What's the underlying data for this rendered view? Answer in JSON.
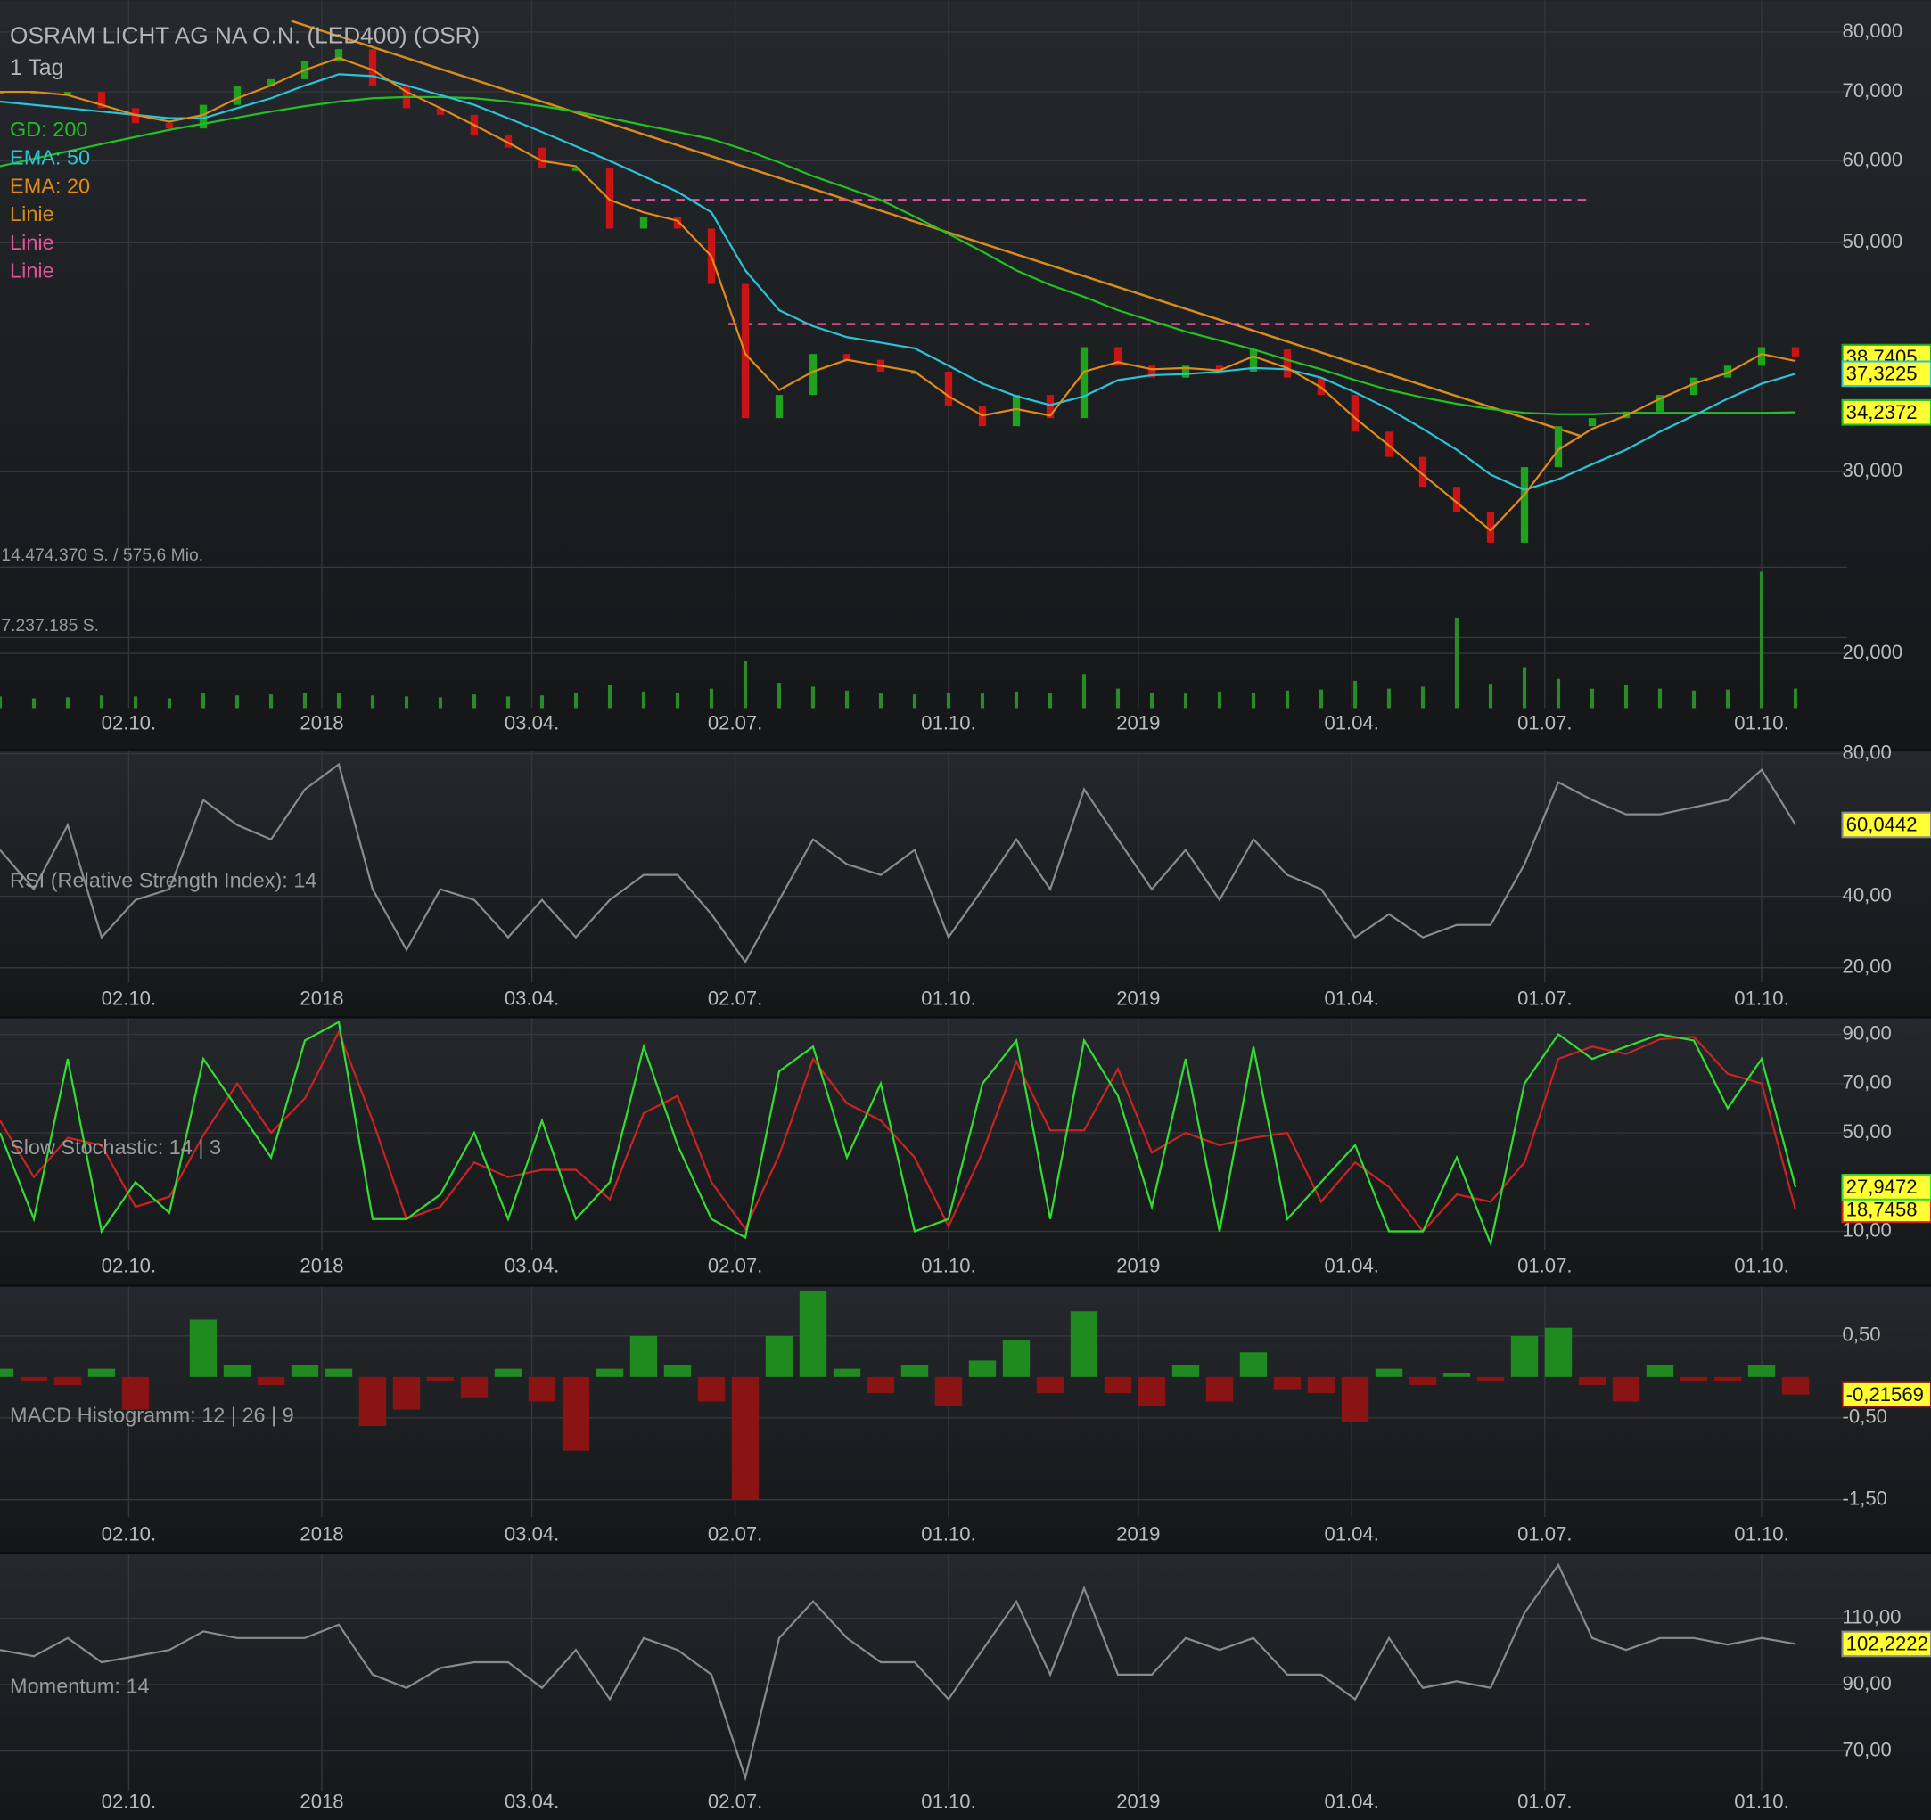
{
  "chart_data": [
    {
      "type": "line",
      "title": "OSRAM LICHT AG NA O.N. (LED400) (OSR)",
      "subtitle": "1 Tag",
      "log": true,
      "xlim": [
        0,
        57
      ],
      "xticks": [
        {
          "value": 3.8,
          "label": "02.10."
        },
        {
          "value": 9.5,
          "label": "2018"
        },
        {
          "value": 15.7,
          "label": "03.04."
        },
        {
          "value": 21.7,
          "label": "02.07."
        },
        {
          "value": 28,
          "label": "01.10."
        },
        {
          "value": 33.6,
          "label": "2019"
        },
        {
          "value": 39.9,
          "label": "01.04."
        },
        {
          "value": 45.6,
          "label": "01.07."
        },
        {
          "value": 52,
          "label": "01.10."
        }
      ],
      "ylim": [
        17.7,
        85.9
      ],
      "yticks": [
        {
          "value": 80,
          "label": "80,000"
        },
        {
          "value": 70,
          "label": "70,000"
        },
        {
          "value": 60,
          "label": "60,000"
        },
        {
          "value": 50,
          "label": "50,000"
        },
        {
          "value": 30,
          "label": "30,000"
        },
        {
          "value": 20,
          "label": "20,000"
        }
      ],
      "grid": true,
      "series": [
        {
          "style": "bars",
          "colors": {
            "up": "#1fa31f",
            "down": "#c81414"
          },
          "last_label": "38,7405",
          "values": [
            70,
            70,
            70,
            67.5,
            65.3,
            64.5,
            68,
            71,
            72,
            75,
            77,
            71,
            67.5,
            66.5,
            63.5,
            61.8,
            59,
            59,
            51.6,
            53,
            51.6,
            45.6,
            33.8,
            35.6,
            39,
            38.5,
            37.5,
            37.5,
            34.7,
            33.2,
            35.6,
            33.8,
            39.6,
            38,
            37,
            38,
            37.5,
            39.4,
            37,
            35.6,
            32.8,
            31,
            29,
            27.4,
            25.6,
            30.3,
            33.2,
            33.8,
            34.3,
            35.6,
            37,
            38,
            39.6,
            38.7405
          ]
        },
        {
          "name": "GD: 200",
          "color": "#22c022",
          "last_label": "34,2372",
          "values": [
            59.3,
            60.3,
            61.3,
            62.3,
            63.3,
            64.3,
            65.2,
            66.1,
            67,
            67.8,
            68.5,
            69,
            69.2,
            69.2,
            69,
            68.5,
            67.8,
            67,
            66,
            65,
            64,
            63,
            61.5,
            59.8,
            58,
            56.5,
            55,
            53,
            51,
            49,
            47,
            45.5,
            44.3,
            43,
            42,
            41,
            40.2,
            39.4,
            38.5,
            37.7,
            36.8,
            36,
            35.4,
            34.9,
            34.5,
            34.2,
            34.1,
            34.1,
            34.2,
            34.2,
            34.2,
            34.2,
            34.2,
            34.2372
          ]
        },
        {
          "name": "EMA: 50",
          "color": "#2bc4d6",
          "last_label": "37,3225",
          "values": [
            68.5,
            68,
            67.5,
            67,
            66.5,
            66,
            66,
            67.5,
            69,
            71,
            72.8,
            72.5,
            71,
            69.5,
            68,
            66,
            64,
            62,
            60,
            58,
            56,
            53.5,
            47,
            43,
            41.5,
            40.5,
            40,
            39.5,
            38,
            36.5,
            35.5,
            34.8,
            35.5,
            36.8,
            37.2,
            37.3,
            37.5,
            37.8,
            37.7,
            37,
            35.8,
            34.5,
            33,
            31.5,
            29.8,
            28.8,
            29.5,
            30.5,
            31.5,
            32.8,
            34,
            35.3,
            36.5,
            37.3225
          ]
        },
        {
          "name": "EMA: 20",
          "color": "#e08a1a",
          "values": [
            70,
            70,
            69.5,
            68,
            66.5,
            65.5,
            66.5,
            69,
            71,
            73.5,
            75.5,
            73.5,
            70,
            67.5,
            65,
            62.5,
            60,
            59.3,
            55,
            53.5,
            52.5,
            48.5,
            39,
            36,
            37.5,
            38.5,
            38,
            37.5,
            35.5,
            34,
            34.5,
            34,
            37.5,
            38.3,
            37.7,
            37.8,
            37.6,
            38.8,
            37.8,
            36.2,
            33.8,
            31.8,
            29.8,
            28,
            26.3,
            28.5,
            31.5,
            33,
            34,
            35.3,
            36.5,
            37.4,
            39,
            38.4
          ]
        }
      ],
      "lines": [
        {
          "name": "Linie",
          "color": "#d98b1c",
          "x": [
            8.6,
            46.7
          ],
          "values": [
            82,
            32.45
          ]
        },
        {
          "name": "Linie",
          "color": "#e0559a",
          "dash": true,
          "x": [
            18.65,
            46.9
          ],
          "values": [
            55,
            55
          ]
        },
        {
          "name": "Linie",
          "color": "#e0559a",
          "dash": true,
          "x": [
            21.5,
            46.9
          ],
          "values": [
            41.7,
            41.7
          ]
        }
      ],
      "volume": {
        "color": "#2a8a2a",
        "y2lim": [
          0,
          72700000
        ],
        "y2ticks": [
          {
            "value": 14474370,
            "label": "14.474.370 S. / 575,6 Mio."
          },
          {
            "value": 7237185,
            "label": "7.237.185 S."
          }
        ],
        "values": [
          1200000,
          1000000,
          1100000,
          1300000,
          1200000,
          1000000,
          1500000,
          1300000,
          1400000,
          1600000,
          1500000,
          1300000,
          1200000,
          1100000,
          1400000,
          1200000,
          1300000,
          1600000,
          2400000,
          1700000,
          1600000,
          2000000,
          4800000,
          2600000,
          2200000,
          1800000,
          1500000,
          1400000,
          1600000,
          1500000,
          1700000,
          1500000,
          3500000,
          2000000,
          1600000,
          1500000,
          1700000,
          1600000,
          1800000,
          1900000,
          2800000,
          2000000,
          2200000,
          9300000,
          2500000,
          4200000,
          3000000,
          2000000,
          2400000,
          2000000,
          1800000,
          1900000,
          14000000,
          2000000
        ]
      }
    },
    {
      "type": "line",
      "label": "RSI (Relative Strength Index): 14",
      "xlim": [
        0,
        57
      ],
      "xticks": [
        {
          "value": 3.8,
          "label": "02.10."
        },
        {
          "value": 9.5,
          "label": "2018"
        },
        {
          "value": 15.7,
          "label": "03.04."
        },
        {
          "value": 21.7,
          "label": "02.07."
        },
        {
          "value": 28,
          "label": "01.10."
        },
        {
          "value": 33.6,
          "label": "2019"
        },
        {
          "value": 39.9,
          "label": "01.04."
        },
        {
          "value": 45.6,
          "label": "01.07."
        },
        {
          "value": 52,
          "label": "01.10."
        }
      ],
      "ylim": [
        15.8,
        80.7
      ],
      "yticks": [
        {
          "value": 80,
          "label": "80,00"
        },
        {
          "value": 40,
          "label": "40,00"
        },
        {
          "value": 20,
          "label": "20,00"
        }
      ],
      "grid": true,
      "series": [
        {
          "color": "#8a8a8a",
          "last_label": "60,0442",
          "values": [
            53,
            42,
            60,
            28.5,
            39,
            42,
            67,
            60,
            56,
            70,
            77,
            42,
            25,
            42,
            39,
            28.5,
            39,
            28.5,
            39,
            46,
            46,
            35,
            21.6,
            39,
            56,
            49,
            46,
            53,
            28.5,
            42,
            56,
            42,
            70,
            56,
            42,
            53,
            39,
            56,
            46,
            42,
            28.5,
            35,
            28.5,
            32,
            32,
            49,
            72,
            67,
            63,
            63,
            65,
            67,
            75.5,
            60.0442
          ]
        }
      ]
    },
    {
      "type": "line",
      "label": "Slow Stochastic: 14 | 3",
      "xlim": [
        0,
        57
      ],
      "xticks": [
        {
          "value": 3.8,
          "label": "02.10."
        },
        {
          "value": 9.5,
          "label": "2018"
        },
        {
          "value": 15.7,
          "label": "03.04."
        },
        {
          "value": 21.7,
          "label": "02.07."
        },
        {
          "value": 28,
          "label": "01.10."
        },
        {
          "value": 33.6,
          "label": "2019"
        },
        {
          "value": 39.9,
          "label": "01.04."
        },
        {
          "value": 45.6,
          "label": "01.07."
        },
        {
          "value": 52,
          "label": "01.10."
        }
      ],
      "ylim": [
        2.5,
        96.5
      ],
      "yticks": [
        {
          "value": 90,
          "label": "90,00"
        },
        {
          "value": 70,
          "label": "70,00"
        },
        {
          "value": 50,
          "label": "50,00"
        },
        {
          "value": 10,
          "label": "10,00"
        }
      ],
      "grid": true,
      "series": [
        {
          "color": "#cc2222",
          "last_label": "18,7458",
          "values": [
            55,
            32,
            48,
            45,
            20,
            24,
            49,
            70,
            50,
            64,
            91,
            55,
            15,
            20,
            38,
            32,
            35,
            35,
            23,
            58,
            65,
            30,
            11,
            41,
            80,
            62,
            55,
            40,
            12,
            42,
            79,
            51,
            51,
            76,
            42,
            50,
            45,
            48,
            50,
            22,
            38,
            28,
            10,
            25,
            22,
            38,
            80,
            85,
            82,
            88,
            89,
            74,
            70,
            18.7458
          ]
        },
        {
          "color": "#33dd33",
          "last_label": "27,9472",
          "values": [
            50,
            15,
            80,
            10,
            30,
            17.5,
            80,
            60,
            40,
            87.5,
            95,
            15,
            15,
            25,
            50,
            15,
            55,
            15,
            30,
            85,
            45,
            15,
            7.5,
            75,
            85,
            40,
            70,
            10,
            15,
            70,
            87.5,
            15,
            87.5,
            65,
            20,
            80,
            10,
            85,
            15,
            30,
            45,
            10,
            10,
            40,
            5,
            70,
            90,
            80,
            85,
            90,
            87.5,
            60,
            80,
            27.9472
          ]
        }
      ]
    },
    {
      "type": "bar",
      "label": "MACD Histogramm: 12 | 26 | 9",
      "xlim": [
        0,
        57
      ],
      "xticks": [
        {
          "value": 3.8,
          "label": "02.10."
        },
        {
          "value": 9.5,
          "label": "2018"
        },
        {
          "value": 15.7,
          "label": "03.04."
        },
        {
          "value": 21.7,
          "label": "02.07."
        },
        {
          "value": 28,
          "label": "01.10."
        },
        {
          "value": 33.6,
          "label": "2019"
        },
        {
          "value": 39.9,
          "label": "01.04."
        },
        {
          "value": 45.6,
          "label": "01.07."
        },
        {
          "value": 52,
          "label": "01.10."
        }
      ],
      "ylim": [
        -1.71,
        1.1
      ],
      "yticks": [
        {
          "value": 0.5,
          "label": "0,50"
        },
        {
          "value": -0.5,
          "label": "-0,50"
        },
        {
          "value": -1.5,
          "label": "-1,50"
        }
      ],
      "grid": true,
      "colors": {
        "positive": "#1f8a1f",
        "negative": "#8a1414"
      },
      "last_label": "-0,21569",
      "values": [
        0.1,
        -0.05,
        -0.1,
        0.1,
        -0.4,
        0,
        0.7,
        0.15,
        -0.1,
        0.15,
        0.1,
        -0.6,
        -0.4,
        -0.05,
        -0.25,
        0.1,
        -0.3,
        -0.9,
        0.1,
        0.5,
        0.15,
        -0.3,
        -1.5,
        0.5,
        1.05,
        0.1,
        -0.2,
        0.15,
        -0.35,
        0.2,
        0.45,
        -0.2,
        0.8,
        -0.2,
        -0.35,
        0.15,
        -0.3,
        0.3,
        -0.15,
        -0.2,
        -0.55,
        0.1,
        -0.1,
        0.05,
        -0.05,
        0.5,
        0.6,
        -0.1,
        -0.3,
        0.15,
        -0.05,
        -0.05,
        0.15,
        -0.21569
      ]
    },
    {
      "type": "line",
      "label": "Momentum: 14",
      "xlim": [
        0,
        57
      ],
      "xticks": [
        {
          "value": 3.8,
          "label": "02.10."
        },
        {
          "value": 9.5,
          "label": "2018"
        },
        {
          "value": 15.7,
          "label": "03.04."
        },
        {
          "value": 21.7,
          "label": "02.07."
        },
        {
          "value": 28,
          "label": "01.10."
        },
        {
          "value": 33.6,
          "label": "2019"
        },
        {
          "value": 39.9,
          "label": "01.04."
        },
        {
          "value": 45.6,
          "label": "01.07."
        },
        {
          "value": 52,
          "label": "01.10."
        }
      ],
      "ylim": [
        57.8,
        129.3
      ],
      "yticks": [
        {
          "value": 110,
          "label": "110,00"
        },
        {
          "value": 90,
          "label": "90,00"
        },
        {
          "value": 70,
          "label": "70,00"
        }
      ],
      "grid": true,
      "series": [
        {
          "color": "#8a8a8a",
          "last_label": "102,2222",
          "values": [
            100.4,
            98.5,
            104,
            96.7,
            98.5,
            100.4,
            106,
            104,
            104,
            104,
            108,
            93,
            89,
            95,
            96.7,
            96.7,
            89,
            100.4,
            85.6,
            104,
            100.4,
            93,
            62,
            104,
            115,
            104,
            96.7,
            96.7,
            85.6,
            100.4,
            115,
            93,
            119,
            93,
            93,
            104,
            100.4,
            104,
            93,
            93,
            85.6,
            104,
            89,
            91,
            89,
            111.5,
            126,
            104,
            100.4,
            104,
            104,
            102,
            104,
            102.2222
          ]
        }
      ]
    }
  ]
}
